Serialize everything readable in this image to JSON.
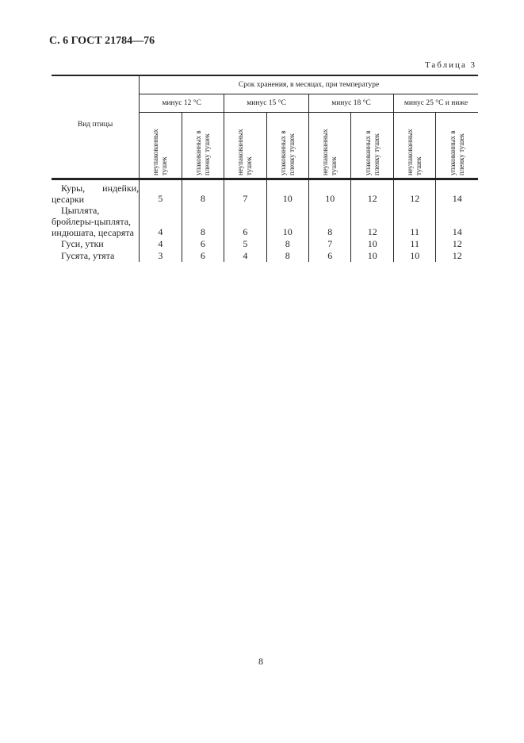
{
  "header": {
    "title": "С. 6 ГОСТ 21784—76",
    "table_label": "Таблица 3"
  },
  "table": {
    "row_header": "Вид птицы",
    "caption": "Срок хранения, в месяцах, при температуре",
    "temperatures": [
      "минус 12 °С",
      "минус 15 °С",
      "минус 18 °С",
      "минус 25 °С и ниже"
    ],
    "subcolumns": [
      "неупакованных тушек",
      "упакованных в пленку тушек"
    ],
    "rows": [
      {
        "name": "Куры, индейки, цесарки",
        "values": [
          "5",
          "8",
          "7",
          "10",
          "10",
          "12",
          "12",
          "14"
        ]
      },
      {
        "name": "Цыплята, бройлеры-цыплята, индюшата, цесарята",
        "values": [
          "4",
          "8",
          "6",
          "10",
          "8",
          "12",
          "11",
          "14"
        ]
      },
      {
        "name": "Гуси, утки",
        "values": [
          "4",
          "6",
          "5",
          "8",
          "7",
          "10",
          "11",
          "12"
        ]
      },
      {
        "name": "Гусята, утята",
        "values": [
          "3",
          "6",
          "4",
          "8",
          "6",
          "10",
          "10",
          "12"
        ]
      }
    ]
  },
  "footer": {
    "page_number": "8"
  }
}
